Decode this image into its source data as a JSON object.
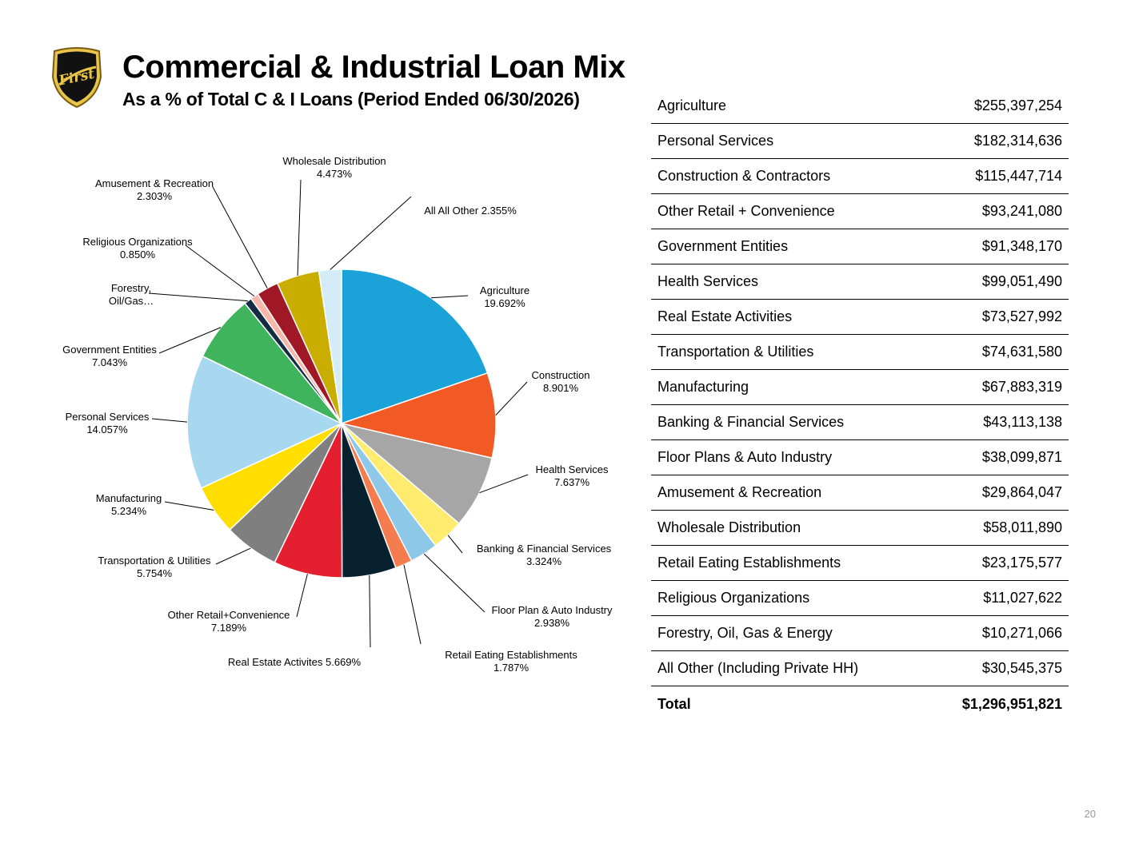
{
  "header": {
    "title": "Commercial & Industrial Loan Mix",
    "subtitle": "As a % of Total C & I Loans (Period Ended 06/30/2026)",
    "logo_text": "First"
  },
  "chart_data": {
    "type": "pie",
    "start_angle_deg": 0,
    "direction": "clockwise",
    "slices": [
      {
        "label": [
          "Agriculture",
          "19.692%"
        ],
        "value": 19.692,
        "color": "#1aa2d9"
      },
      {
        "label": [
          "Construction",
          "8.901%"
        ],
        "value": 8.901,
        "color": "#f15a24"
      },
      {
        "label": [
          "Health Services",
          "7.637%"
        ],
        "value": 7.637,
        "color": "#a6a6a6"
      },
      {
        "label": [
          "Banking & Financial Services",
          "3.324%"
        ],
        "value": 3.324,
        "color": "#ffeb6e"
      },
      {
        "label": [
          "Floor Plan & Auto Industry",
          "2.938%"
        ],
        "value": 2.938,
        "color": "#8ec8e8"
      },
      {
        "label": [
          "Retail Eating Establishments",
          "1.787%"
        ],
        "value": 1.787,
        "color": "#f47c4e"
      },
      {
        "label": [
          "Real Estate Activites 5.669%"
        ],
        "value": 5.669,
        "color": "#07212e"
      },
      {
        "label": [
          "Other Retail+Convenience",
          "7.189%"
        ],
        "value": 7.189,
        "color": "#e41f30"
      },
      {
        "label": [
          "Transportation & Utilities",
          "5.754%"
        ],
        "value": 5.754,
        "color": "#7f7f7f"
      },
      {
        "label": [
          "Manufacturing",
          "5.234%"
        ],
        "value": 5.234,
        "color": "#ffde00"
      },
      {
        "label": [
          "Personal Services",
          "14.057%"
        ],
        "value": 14.057,
        "color": "#a7d8f0"
      },
      {
        "label": [
          "Government Entities",
          "7.043%"
        ],
        "value": 7.043,
        "color": "#3fb45d"
      },
      {
        "label": [
          "Forestry,",
          "Oil/Gas…"
        ],
        "value": 0.792,
        "color": "#142b44"
      },
      {
        "label": [
          "Religious Organizations",
          "0.850%"
        ],
        "value": 0.85,
        "color": "#f5b8aa"
      },
      {
        "label": [
          "Amusement & Recreation",
          "2.303%"
        ],
        "value": 2.303,
        "color": "#a01726"
      },
      {
        "label": [
          "Wholesale Distribution",
          "4.473%"
        ],
        "value": 4.473,
        "color": "#c9ae00"
      },
      {
        "label": [
          "All All Other 2.355%"
        ],
        "value": 2.355,
        "color": "#d4ecf7"
      }
    ]
  },
  "table": {
    "rows": [
      {
        "name": "Agriculture",
        "amount": "$255,397,254"
      },
      {
        "name": "Personal Services",
        "amount": "$182,314,636"
      },
      {
        "name": "Construction & Contractors",
        "amount": "$115,447,714"
      },
      {
        "name": "Other Retail + Convenience",
        "amount": "$93,241,080"
      },
      {
        "name": "Government Entities",
        "amount": "$91,348,170"
      },
      {
        "name": "Health Services",
        "amount": "$99,051,490"
      },
      {
        "name": "Real Estate Activities",
        "amount": "$73,527,992"
      },
      {
        "name": "Transportation & Utilities",
        "amount": "$74,631,580"
      },
      {
        "name": "Manufacturing",
        "amount": "$67,883,319"
      },
      {
        "name": "Banking & Financial Services",
        "amount": "$43,113,138"
      },
      {
        "name": "Floor Plans & Auto Industry",
        "amount": "$38,099,871"
      },
      {
        "name": "Amusement & Recreation",
        "amount": "$29,864,047"
      },
      {
        "name": "Wholesale Distribution",
        "amount": "$58,011,890"
      },
      {
        "name": "Retail Eating Establishments",
        "amount": "$23,175,577"
      },
      {
        "name": "Religious Organizations",
        "amount": "$11,027,622"
      },
      {
        "name": "Forestry, Oil, Gas & Energy",
        "amount": "$10,271,066"
      },
      {
        "name": "All Other (Including Private HH)",
        "amount": "$30,545,375"
      }
    ],
    "total": {
      "name": "Total",
      "amount": "$1,296,951,821"
    }
  },
  "footer": {
    "page_number": "20"
  }
}
